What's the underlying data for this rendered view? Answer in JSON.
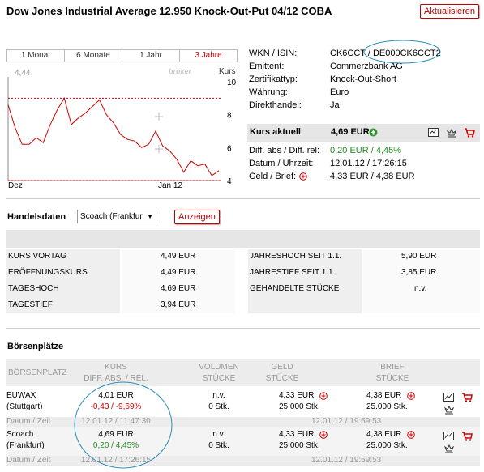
{
  "header": {
    "title": "Dow Jones Industrial Average 12.950 Knock-Out-Put 04/12 COBA",
    "refresh_label": "Aktualisieren"
  },
  "chart": {
    "tabs": [
      "1 Monat",
      "6 Monate",
      "1 Jahr",
      "3 Jahre"
    ],
    "active_tab": 3,
    "watermark": "broker",
    "top_left_value": "4,44",
    "kurs_label": "Kurs",
    "y_ticks": [
      "10",
      "8",
      "6",
      "4"
    ],
    "x_ticks": [
      "Dez",
      "Jan 12"
    ]
  },
  "chart_data": {
    "type": "line",
    "x": [
      0,
      1,
      2,
      3,
      4,
      5,
      6,
      7,
      8,
      9,
      10,
      11,
      12,
      13,
      14,
      15,
      16,
      17,
      18,
      19,
      20,
      21,
      22,
      23,
      24,
      25,
      26,
      27,
      28,
      29,
      30
    ],
    "values": [
      8.6,
      7.2,
      6.2,
      6.2,
      6.6,
      6.3,
      7.4,
      8.3,
      9.0,
      7.4,
      7.8,
      8.1,
      8.5,
      8.9,
      8.0,
      7.5,
      6.8,
      6.5,
      6.4,
      6.0,
      6.2,
      7.0,
      6.1,
      5.8,
      5.3,
      4.5,
      5.2,
      4.9,
      5.0,
      4.3,
      4.6
    ],
    "reference_lines": [
      9.0,
      4.0
    ],
    "ylim": [
      4,
      10
    ],
    "y_ticks": [
      10,
      8,
      6,
      4
    ],
    "x_tick_labels": [
      "Dez",
      "Jan 12"
    ],
    "grid": false,
    "line_color": "#cc0000"
  },
  "info": {
    "rows": [
      {
        "label": "WKN / ISIN:",
        "value": "CK6CCT / DE000CK6CCT2"
      },
      {
        "label": "Emittent:",
        "value": "Commerzbank AG"
      },
      {
        "label": "Zertifikattyp:",
        "value": "Knock-Out-Short"
      },
      {
        "label": "Währung:",
        "value": "Euro"
      },
      {
        "label": "Direkthandel:",
        "value": "Ja"
      }
    ],
    "kurs_label": "Kurs aktuell",
    "kurs_value": "4,69 EUR",
    "diff_label": "Diff. abs / Diff. rel:",
    "diff_value": "0,20 EUR / 4,45%",
    "datum_label": "Datum / Uhrzeit:",
    "datum_value": "12.01.12 / 17:26:15",
    "geld_label": "Geld / Brief:",
    "geld_value": "4,33 EUR / 4,38 EUR"
  },
  "handelsdaten": {
    "title": "Handelsdaten",
    "select_value": "Scoach (Frankfur",
    "show_label": "Anzeigen",
    "left": [
      {
        "label": "KURS VORTAG",
        "value": "4,49 EUR"
      },
      {
        "label": "ERÖFFNUNGSKURS",
        "value": "4,49 EUR"
      },
      {
        "label": "TAGESHOCH",
        "value": "4,69 EUR"
      },
      {
        "label": "TAGESTIEF",
        "value": "3,94 EUR"
      }
    ],
    "right": [
      {
        "label": "JAHRESHOCH SEIT 1.1.",
        "value": "5,90 EUR"
      },
      {
        "label": "JAHRESTIEF SEIT 1.1.",
        "value": "3,85 EUR"
      },
      {
        "label": "GEHANDELTE STÜCKE",
        "value": "n.v."
      }
    ]
  },
  "boersen": {
    "title": "Börsenplätze",
    "headers": {
      "platz": "BÖRSENPLATZ",
      "kurs1": "KURS",
      "kurs2": "DIFF. ABS. / REL.",
      "vol1": "VOLUMEN",
      "vol2": "STÜCKE",
      "geld1": "GELD",
      "geld2": "STÜCKE",
      "brief1": "BRIEF",
      "brief2": "STÜCKE"
    },
    "rows": [
      {
        "name1": "EUWAX",
        "name2": "(Stuttgart)",
        "kurs": "4,01 EUR",
        "diff": "-0,43 / -9,69%",
        "vol1": "n.v.",
        "vol2": "0 Stk.",
        "geld": "4,33 EUR",
        "geld_stk": "25.000 Stk.",
        "brief": "4,38 EUR",
        "brief_stk": "25.000 Stk.",
        "date_label": "Datum / Zeit",
        "date": "12.01.12 / 11:47:30",
        "date2": "12.01.12 / 19:59:53"
      },
      {
        "name1": "Scoach",
        "name2": "(Frankfurt)",
        "kurs": "4,69 EUR",
        "diff": "0,20 / 4,45%",
        "vol1": "n.v.",
        "vol2": "0 Stk.",
        "geld": "4,33 EUR",
        "geld_stk": "25.000 Stk.",
        "brief": "4,38 EUR",
        "brief_stk": "25.000 Stk.",
        "date_label": "Datum / Zeit",
        "date": "12.01.12 / 17:26:15",
        "date2": "12.01.12 / 19:59:53"
      }
    ]
  }
}
